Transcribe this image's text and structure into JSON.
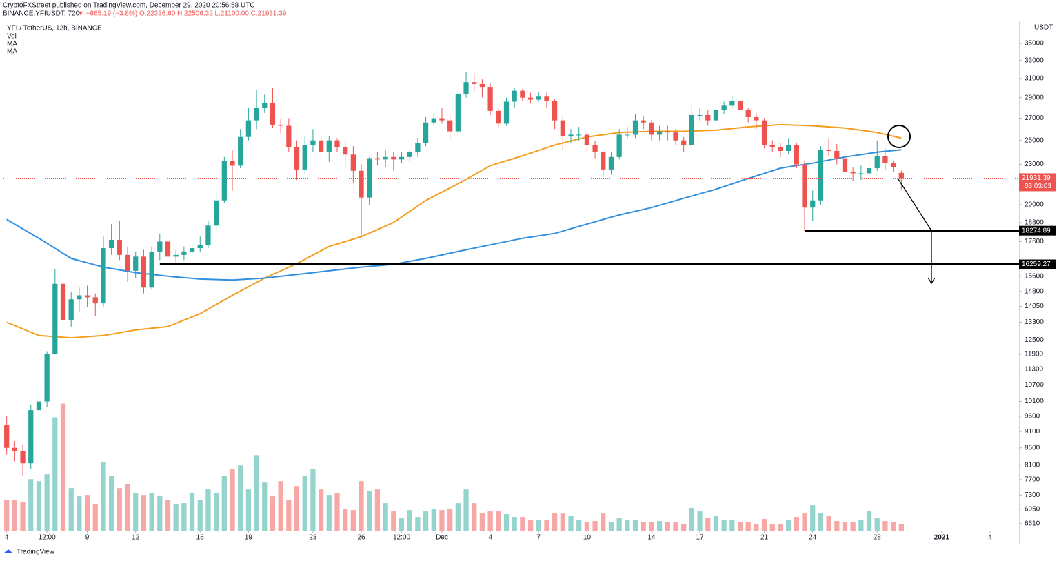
{
  "header": {
    "publisher": "CryptoFXStreet published on TradingView.com, December 29, 2020 20:56:58 UTC",
    "symbol": "BINANCE:YFIUSDT, 720",
    "change": "▼ −865.19 (−3.8%)",
    "ohlc": "O:22336.60 H:22506.32 L:21100.00 C:21931.39"
  },
  "footer": "TradingView",
  "chart_data": {
    "type": "candlestick",
    "legend": [
      "YFI / TetherUS, 12h, BINANCE",
      "Vol"
    ],
    "y_unit": "USDT",
    "log": true,
    "grid": false,
    "up_color": "#26a69a",
    "down_color": "#ef5350",
    "vol_up_color": "#94d4cd",
    "vol_down_color": "#f7a8a6",
    "xlim": [
      -0.4,
      125.6
    ],
    "xticks": [
      {
        "value": 0,
        "label": "4"
      },
      {
        "value": 5,
        "label": "12:00"
      },
      {
        "value": 10,
        "label": "9"
      },
      {
        "value": 16,
        "label": "12"
      },
      {
        "value": 24,
        "label": "16"
      },
      {
        "value": 30,
        "label": "19"
      },
      {
        "value": 38,
        "label": "23"
      },
      {
        "value": 44,
        "label": "26"
      },
      {
        "value": 49,
        "label": "12:00"
      },
      {
        "value": 54,
        "label": "Dec"
      },
      {
        "value": 60,
        "label": "4"
      },
      {
        "value": 66,
        "label": "7"
      },
      {
        "value": 72,
        "label": "10"
      },
      {
        "value": 80,
        "label": "14"
      },
      {
        "value": 86,
        "label": "17"
      },
      {
        "value": 94,
        "label": "21"
      },
      {
        "value": 100,
        "label": "24"
      },
      {
        "value": 108,
        "label": "28"
      },
      {
        "value": 116,
        "label": "2021"
      },
      {
        "value": 122,
        "label": "4"
      }
    ],
    "ylim": [
      6450,
      37700
    ],
    "yticks": [
      6610,
      6950,
      7300,
      7700,
      8100,
      8600,
      9100,
      9600,
      10100,
      10700,
      11300,
      11900,
      12500,
      13300,
      14050,
      14800,
      15600,
      17600,
      18800,
      20000,
      23000,
      25000,
      27000,
      29000,
      31000,
      33000,
      35000
    ],
    "vlim": [
      0,
      740
    ],
    "open": [
      9300,
      8600,
      8500,
      8150,
      9800,
      10100,
      11900,
      15200,
      13400,
      14400,
      14600,
      14500,
      14200,
      17200,
      17700,
      16800,
      15900,
      16700,
      15000,
      17000,
      17600,
      16700,
      16800,
      17000,
      17200,
      17400,
      18600,
      20300,
      23300,
      22900,
      25300,
      26800,
      28000,
      28500,
      26400,
      26300,
      24400,
      22600,
      24600,
      25000,
      24000,
      25000,
      24400,
      23800,
      22500,
      20500,
      23500,
      23400,
      23600,
      23400,
      23600,
      24000,
      24800,
      26600,
      27000,
      26800,
      25800,
      29400,
      30600,
      30400,
      30100,
      27700,
      26500,
      28600,
      29700,
      29000,
      28800,
      29100,
      28700,
      26800,
      25400,
      25500,
      25500,
      24600,
      24000,
      22600,
      23600,
      25500,
      25500,
      26800,
      26600,
      25500,
      25800,
      25700,
      25000,
      24600,
      27300,
      27300,
      26800,
      27800,
      28200,
      28700,
      27800,
      27100,
      26800,
      24600,
      24400,
      24100,
      24600,
      23000,
      19800,
      20300,
      24200,
      24100,
      23500,
      22400,
      22300,
      22300,
      22700,
      23700,
      23100,
      22336.6
    ],
    "high": [
      9600,
      8800,
      8700,
      10000,
      10500,
      12000,
      16000,
      15500,
      14800,
      15000,
      15100,
      14700,
      17900,
      18700,
      18900,
      17300,
      17000,
      17100,
      17300,
      18100,
      17800,
      17100,
      17300,
      17500,
      17900,
      18900,
      21000,
      23600,
      24200,
      26000,
      28000,
      29800,
      29300,
      30000,
      26900,
      27000,
      25000,
      25400,
      26000,
      25500,
      25400,
      25200,
      25000,
      24500,
      23000,
      23600,
      24000,
      24200,
      24000,
      24000,
      24200,
      25200,
      27100,
      27500,
      28000,
      27300,
      29600,
      31700,
      31400,
      30900,
      30500,
      28000,
      29000,
      30000,
      29900,
      29500,
      29600,
      29500,
      28900,
      27200,
      26000,
      26200,
      25800,
      25000,
      24200,
      24000,
      26000,
      26200,
      27400,
      27200,
      26800,
      26300,
      26300,
      26000,
      25300,
      28500,
      28000,
      27800,
      28600,
      28600,
      29100,
      29000,
      28000,
      27500,
      27000,
      25000,
      24800,
      25200,
      24800,
      23300,
      21000,
      24500,
      25200,
      24700,
      23800,
      22800,
      22900,
      24000,
      25000,
      24300,
      23300,
      22506.32
    ],
    "low": [
      8400,
      8200,
      7800,
      8000,
      9000,
      9900,
      11900,
      13000,
      13100,
      13800,
      14000,
      13600,
      14000,
      16800,
      16500,
      15300,
      15500,
      14700,
      14900,
      16500,
      16200,
      16300,
      16500,
      16800,
      17000,
      17200,
      18300,
      20100,
      21000,
      22700,
      25000,
      26000,
      27500,
      26100,
      25600,
      24000,
      21800,
      22300,
      24000,
      23500,
      23200,
      24000,
      22800,
      21600,
      17900,
      20000,
      22900,
      22800,
      22500,
      23100,
      23300,
      23600,
      24500,
      26300,
      26500,
      25000,
      25600,
      29000,
      29600,
      29000,
      27300,
      26200,
      26300,
      28000,
      28700,
      28400,
      28600,
      28000,
      26000,
      24200,
      24800,
      25000,
      24000,
      23500,
      22000,
      22200,
      23400,
      25100,
      25200,
      26000,
      25000,
      25000,
      25000,
      24600,
      24000,
      24400,
      26800,
      26300,
      26600,
      27400,
      28000,
      27500,
      26600,
      26000,
      24300,
      24000,
      23600,
      23800,
      22700,
      18275,
      18900,
      20000,
      23700,
      23000,
      22000,
      21700,
      21800,
      22100,
      22500,
      22600,
      22400,
      21100
    ],
    "close": [
      8600,
      8500,
      8150,
      9800,
      10100,
      11900,
      15200,
      13400,
      14400,
      14600,
      14500,
      14200,
      17200,
      17700,
      16800,
      15900,
      16700,
      15000,
      17000,
      17600,
      16700,
      16800,
      17000,
      17200,
      17400,
      18600,
      20300,
      23300,
      22900,
      25300,
      26800,
      28000,
      28500,
      26400,
      26300,
      24400,
      22600,
      24600,
      25000,
      24000,
      25000,
      24400,
      23800,
      22500,
      20500,
      23500,
      23400,
      23600,
      23400,
      23600,
      24000,
      24800,
      26600,
      27000,
      26800,
      25800,
      29400,
      30600,
      30400,
      30100,
      27700,
      26500,
      28600,
      29700,
      29000,
      28800,
      29100,
      28700,
      26800,
      25400,
      25500,
      25500,
      24600,
      24000,
      22600,
      23600,
      25500,
      25500,
      26800,
      26600,
      25500,
      25800,
      25700,
      25000,
      24600,
      27300,
      27300,
      26800,
      27800,
      28200,
      28700,
      27800,
      27100,
      26800,
      24600,
      24400,
      24100,
      24600,
      23000,
      19800,
      20300,
      24200,
      24100,
      23500,
      22400,
      22300,
      22300,
      22700,
      23700,
      23100,
      22800,
      21931.39
    ],
    "volume": [
      45,
      45,
      42,
      75,
      72,
      82,
      165,
      185,
      62,
      50,
      52,
      38,
      100,
      80,
      62,
      68,
      55,
      52,
      55,
      50,
      45,
      38,
      40,
      55,
      45,
      60,
      55,
      80,
      90,
      95,
      60,
      110,
      70,
      50,
      72,
      45,
      65,
      80,
      90,
      60,
      52,
      55,
      32,
      30,
      72,
      58,
      60,
      40,
      28,
      18,
      30,
      20,
      28,
      32,
      30,
      32,
      40,
      60,
      40,
      25,
      28,
      28,
      24,
      20,
      20,
      15,
      15,
      15,
      25,
      25,
      22,
      15,
      13,
      14,
      25,
      12,
      18,
      16,
      16,
      13,
      13,
      14,
      12,
      12,
      10,
      33,
      28,
      18,
      22,
      15,
      15,
      12,
      12,
      10,
      17,
      10,
      10,
      15,
      20,
      26,
      37,
      25,
      22,
      14,
      12,
      12,
      15,
      28,
      18,
      14,
      13,
      10
    ],
    "series": [
      {
        "name": "MA",
        "color": "#f59c1a",
        "x": [
          0,
          4,
          8,
          12,
          16,
          20,
          24,
          28,
          32,
          36,
          40,
          44,
          48,
          52,
          56,
          60,
          64,
          68,
          72,
          76,
          80,
          84,
          88,
          92,
          96,
          100,
          104,
          108,
          111
        ],
        "values": [
          13300,
          12700,
          12600,
          12700,
          12950,
          13100,
          13700,
          14600,
          15500,
          16300,
          17300,
          17900,
          18800,
          20300,
          21500,
          22900,
          23700,
          24600,
          25300,
          25700,
          25800,
          25800,
          25900,
          26200,
          26400,
          26300,
          26100,
          25700,
          25200
        ]
      },
      {
        "name": "MA",
        "color": "#2f8fe0",
        "x": [
          0,
          4,
          8,
          12,
          16,
          20,
          24,
          28,
          32,
          36,
          40,
          44,
          48,
          52,
          56,
          60,
          64,
          68,
          72,
          76,
          80,
          84,
          88,
          92,
          96,
          100,
          104,
          108,
          111
        ],
        "values": [
          19000,
          17800,
          16600,
          16100,
          15800,
          15600,
          15450,
          15400,
          15500,
          15700,
          15900,
          16100,
          16260,
          16600,
          17000,
          17400,
          17800,
          18100,
          18700,
          19300,
          19800,
          20450,
          21100,
          21900,
          22700,
          23100,
          23600,
          24000,
          24200
        ]
      }
    ],
    "levels": [
      {
        "value": 18274.89,
        "from": 99
      },
      {
        "value": 16259.27,
        "from": 19
      }
    ],
    "countdown": "03:03:03"
  }
}
